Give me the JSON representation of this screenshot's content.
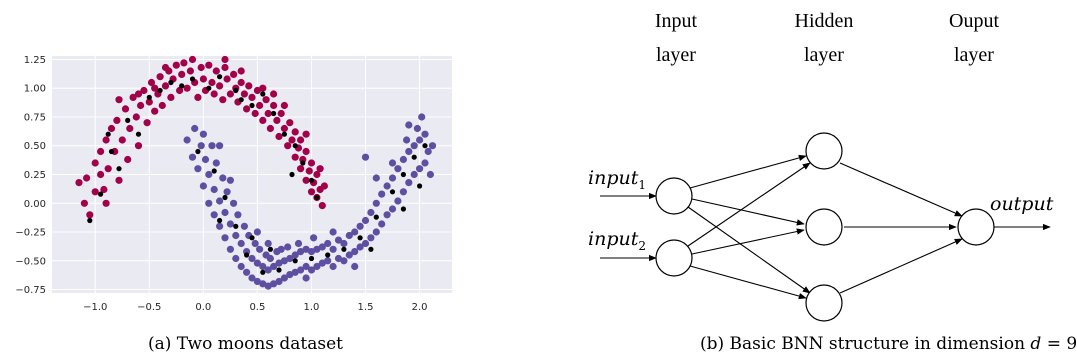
{
  "captions": {
    "a": "(a) Two moons dataset",
    "b_prefix": "(b) Basic BNN structure in dimension ",
    "b_var": "d",
    "b_eq": " = 9"
  },
  "network": {
    "layer_titles": [
      {
        "line1": "Input",
        "line2": "layer"
      },
      {
        "line1": "Hidden",
        "line2": "layer"
      },
      {
        "line1": "Ouput",
        "line2": "layer"
      }
    ],
    "inputs": [
      {
        "base": "input",
        "sub": "1"
      },
      {
        "base": "input",
        "sub": "2"
      }
    ],
    "output_label": "output"
  },
  "chart_data": {
    "type": "scatter",
    "title": "",
    "xlabel": "",
    "ylabel": "",
    "xlim": [
      -1.4,
      2.3
    ],
    "ylim": [
      -0.78,
      1.28
    ],
    "xticks": [
      -1.0,
      -0.5,
      0.0,
      0.5,
      1.0,
      1.5,
      2.0
    ],
    "xtick_labels": [
      "−1.0",
      "−0.5",
      "0.0",
      "0.5",
      "1.0",
      "1.5",
      "2.0"
    ],
    "yticks": [
      -0.75,
      -0.5,
      -0.25,
      0.0,
      0.25,
      0.5,
      0.75,
      1.0,
      1.25
    ],
    "ytick_labels": [
      "−0.75",
      "−0.50",
      "−0.25",
      "0.00",
      "0.25",
      "0.50",
      "0.75",
      "1.00",
      "1.25"
    ],
    "grid": true,
    "background": "#eaeaf2",
    "series": [
      {
        "color": "#a3004a",
        "points": [
          [
            -1.15,
            0.18
          ],
          [
            -1.1,
            0.0
          ],
          [
            -1.05,
            -0.1
          ],
          [
            -1.0,
            0.35
          ],
          [
            -1.0,
            0.1
          ],
          [
            -0.95,
            0.45
          ],
          [
            -0.95,
            0.25
          ],
          [
            -0.9,
            0.55
          ],
          [
            -0.9,
            0.0
          ],
          [
            -0.88,
            0.3
          ],
          [
            -0.85,
            0.65
          ],
          [
            -0.82,
            0.45
          ],
          [
            -0.8,
            0.72
          ],
          [
            -0.78,
            0.2
          ],
          [
            -0.75,
            0.55
          ],
          [
            -0.72,
            0.82
          ],
          [
            -0.7,
            0.38
          ],
          [
            -0.68,
            0.65
          ],
          [
            -0.65,
            0.92
          ],
          [
            -0.62,
            0.75
          ],
          [
            -0.6,
            0.5
          ],
          [
            -0.58,
            0.85
          ],
          [
            -0.55,
            0.98
          ],
          [
            -0.52,
            0.7
          ],
          [
            -0.5,
            0.88
          ],
          [
            -0.48,
            1.05
          ],
          [
            -0.45,
            0.8
          ],
          [
            -0.42,
            0.95
          ],
          [
            -0.4,
            1.1
          ],
          [
            -0.38,
            0.85
          ],
          [
            -0.35,
            1.02
          ],
          [
            -0.32,
            1.15
          ],
          [
            -0.3,
            0.92
          ],
          [
            -0.28,
            1.08
          ],
          [
            -0.25,
            1.2
          ],
          [
            -0.22,
            0.98
          ],
          [
            -0.2,
            1.12
          ],
          [
            -0.18,
            1.22
          ],
          [
            -0.15,
            1.0
          ],
          [
            -0.12,
            1.15
          ],
          [
            -0.1,
            1.25
          ],
          [
            -0.08,
            1.05
          ],
          [
            -0.05,
            0.92
          ],
          [
            -0.02,
            1.18
          ],
          [
            0.0,
            1.08
          ],
          [
            0.02,
            0.98
          ],
          [
            0.05,
            1.2
          ],
          [
            0.08,
            1.05
          ],
          [
            0.1,
            0.95
          ],
          [
            0.12,
            1.15
          ],
          [
            0.15,
            1.02
          ],
          [
            0.18,
            0.9
          ],
          [
            0.2,
            1.18
          ],
          [
            0.22,
            1.08
          ],
          [
            0.25,
            0.95
          ],
          [
            0.28,
            1.12
          ],
          [
            0.3,
            1.0
          ],
          [
            0.32,
            0.88
          ],
          [
            0.35,
            1.05
          ],
          [
            0.38,
            0.95
          ],
          [
            0.4,
            0.82
          ],
          [
            0.42,
            1.02
          ],
          [
            0.45,
            0.92
          ],
          [
            0.48,
            0.78
          ],
          [
            0.5,
            0.98
          ],
          [
            0.52,
            0.85
          ],
          [
            0.55,
            0.72
          ],
          [
            0.58,
            0.9
          ],
          [
            0.6,
            0.78
          ],
          [
            0.62,
            0.65
          ],
          [
            0.65,
            0.85
          ],
          [
            0.68,
            0.72
          ],
          [
            0.7,
            0.58
          ],
          [
            0.72,
            0.78
          ],
          [
            0.75,
            0.65
          ],
          [
            0.78,
            0.5
          ],
          [
            0.8,
            0.7
          ],
          [
            0.82,
            0.55
          ],
          [
            0.85,
            0.4
          ],
          [
            0.85,
            0.62
          ],
          [
            0.88,
            0.48
          ],
          [
            0.9,
            0.3
          ],
          [
            0.9,
            0.55
          ],
          [
            0.92,
            0.38
          ],
          [
            0.95,
            0.2
          ],
          [
            0.95,
            0.45
          ],
          [
            0.98,
            0.28
          ],
          [
            1.0,
            0.1
          ],
          [
            1.0,
            0.35
          ],
          [
            1.02,
            0.18
          ],
          [
            1.05,
            0.05
          ],
          [
            1.05,
            0.25
          ],
          [
            1.08,
            0.12
          ],
          [
            1.1,
            -0.02
          ],
          [
            1.12,
            0.15
          ],
          [
            -1.08,
            0.22
          ],
          [
            -0.92,
            0.12
          ],
          [
            -0.6,
            0.95
          ],
          [
            -0.35,
            1.18
          ],
          [
            0.2,
            1.25
          ],
          [
            0.55,
            1.0
          ],
          [
            0.75,
            0.85
          ],
          [
            0.95,
            0.6
          ],
          [
            1.08,
            0.3
          ],
          [
            -0.78,
            0.9
          ],
          [
            -0.45,
            1.0
          ],
          [
            0.35,
            1.15
          ],
          [
            0.65,
            0.95
          ]
        ]
      },
      {
        "color": "#5e4fa2",
        "points": [
          [
            -0.15,
            0.55
          ],
          [
            -0.1,
            0.4
          ],
          [
            -0.08,
            0.65
          ],
          [
            -0.05,
            0.3
          ],
          [
            -0.02,
            0.5
          ],
          [
            0.0,
            0.15
          ],
          [
            0.02,
            0.38
          ],
          [
            0.05,
            0.0
          ],
          [
            0.05,
            0.25
          ],
          [
            0.08,
            0.5
          ],
          [
            0.1,
            -0.1
          ],
          [
            0.1,
            0.12
          ],
          [
            0.12,
            0.35
          ],
          [
            0.15,
            -0.2
          ],
          [
            0.15,
            0.02
          ],
          [
            0.18,
            0.22
          ],
          [
            0.2,
            -0.3
          ],
          [
            0.2,
            -0.08
          ],
          [
            0.22,
            0.1
          ],
          [
            0.25,
            -0.4
          ],
          [
            0.25,
            -0.18
          ],
          [
            0.28,
            0.0
          ],
          [
            0.3,
            -0.48
          ],
          [
            0.3,
            -0.28
          ],
          [
            0.32,
            -0.1
          ],
          [
            0.35,
            -0.55
          ],
          [
            0.35,
            -0.35
          ],
          [
            0.38,
            -0.2
          ],
          [
            0.4,
            -0.6
          ],
          [
            0.4,
            -0.42
          ],
          [
            0.42,
            -0.28
          ],
          [
            0.45,
            -0.65
          ],
          [
            0.45,
            -0.48
          ],
          [
            0.48,
            -0.35
          ],
          [
            0.5,
            -0.68
          ],
          [
            0.5,
            -0.52
          ],
          [
            0.52,
            -0.4
          ],
          [
            0.55,
            -0.7
          ],
          [
            0.55,
            -0.55
          ],
          [
            0.58,
            -0.45
          ],
          [
            0.6,
            -0.72
          ],
          [
            0.6,
            -0.58
          ],
          [
            0.62,
            -0.48
          ],
          [
            0.65,
            -0.7
          ],
          [
            0.65,
            -0.55
          ],
          [
            0.68,
            -0.42
          ],
          [
            0.7,
            -0.68
          ],
          [
            0.7,
            -0.52
          ],
          [
            0.72,
            -0.4
          ],
          [
            0.75,
            -0.65
          ],
          [
            0.75,
            -0.5
          ],
          [
            0.78,
            -0.38
          ],
          [
            0.8,
            -0.62
          ],
          [
            0.8,
            -0.48
          ],
          [
            0.85,
            -0.6
          ],
          [
            0.85,
            -0.45
          ],
          [
            0.88,
            -0.35
          ],
          [
            0.9,
            -0.58
          ],
          [
            0.9,
            -0.42
          ],
          [
            0.95,
            -0.55
          ],
          [
            0.95,
            -0.4
          ],
          [
            1.0,
            -0.58
          ],
          [
            1.0,
            -0.42
          ],
          [
            1.02,
            -0.3
          ],
          [
            1.05,
            -0.55
          ],
          [
            1.05,
            -0.4
          ],
          [
            1.1,
            -0.52
          ],
          [
            1.1,
            -0.38
          ],
          [
            1.15,
            -0.5
          ],
          [
            1.15,
            -0.35
          ],
          [
            1.2,
            -0.55
          ],
          [
            1.2,
            -0.4
          ],
          [
            1.25,
            -0.48
          ],
          [
            1.25,
            -0.32
          ],
          [
            1.3,
            -0.5
          ],
          [
            1.3,
            -0.35
          ],
          [
            1.35,
            -0.45
          ],
          [
            1.35,
            -0.28
          ],
          [
            1.4,
            -0.42
          ],
          [
            1.4,
            -0.25
          ],
          [
            1.45,
            -0.38
          ],
          [
            1.45,
            -0.2
          ],
          [
            1.5,
            -0.35
          ],
          [
            1.5,
            -0.15
          ],
          [
            1.55,
            -0.3
          ],
          [
            1.55,
            -0.08
          ],
          [
            1.6,
            -0.25
          ],
          [
            1.6,
            0.0
          ],
          [
            1.65,
            -0.18
          ],
          [
            1.65,
            0.08
          ],
          [
            1.7,
            -0.1
          ],
          [
            1.7,
            0.15
          ],
          [
            1.75,
            -0.05
          ],
          [
            1.75,
            0.22
          ],
          [
            1.8,
            0.02
          ],
          [
            1.8,
            0.3
          ],
          [
            1.85,
            0.1
          ],
          [
            1.85,
            0.38
          ],
          [
            1.88,
            0.55
          ],
          [
            1.9,
            0.18
          ],
          [
            1.9,
            0.45
          ],
          [
            1.95,
            0.25
          ],
          [
            1.95,
            0.5
          ],
          [
            1.98,
            0.65
          ],
          [
            2.0,
            0.3
          ],
          [
            2.0,
            0.55
          ],
          [
            2.02,
            0.75
          ],
          [
            2.05,
            0.35
          ],
          [
            2.05,
            0.6
          ],
          [
            2.08,
            0.45
          ],
          [
            2.1,
            0.25
          ],
          [
            2.12,
            0.5
          ],
          [
            1.5,
            0.4
          ],
          [
            1.6,
            0.22
          ],
          [
            0.0,
            0.6
          ],
          [
            0.25,
            0.2
          ],
          [
            0.5,
            -0.25
          ],
          [
            0.95,
            -0.65
          ],
          [
            1.4,
            -0.55
          ],
          [
            1.75,
            0.35
          ],
          [
            0.15,
            0.5
          ],
          [
            0.6,
            -0.35
          ],
          [
            1.2,
            -0.25
          ],
          [
            1.9,
            0.68
          ]
        ]
      },
      {
        "color": "#000000",
        "points": [
          [
            -0.95,
            0.08
          ],
          [
            -0.85,
            0.45
          ],
          [
            -0.78,
            0.3
          ],
          [
            -1.05,
            -0.15
          ],
          [
            -0.7,
            0.72
          ],
          [
            -0.6,
            0.6
          ],
          [
            -0.5,
            0.92
          ],
          [
            -0.4,
            0.98
          ],
          [
            -0.3,
            1.05
          ],
          [
            -0.2,
            1.02
          ],
          [
            -0.1,
            1.08
          ],
          [
            0.05,
            1.0
          ],
          [
            0.15,
            1.1
          ],
          [
            0.3,
            0.98
          ],
          [
            0.45,
            0.85
          ],
          [
            0.55,
            0.95
          ],
          [
            0.65,
            0.78
          ],
          [
            0.75,
            0.6
          ],
          [
            0.85,
            0.5
          ],
          [
            0.92,
            0.35
          ],
          [
            1.0,
            0.2
          ],
          [
            0.82,
            0.25
          ],
          [
            -0.05,
            0.45
          ],
          [
            0.1,
            0.28
          ],
          [
            0.2,
            0.05
          ],
          [
            0.3,
            -0.2
          ],
          [
            0.4,
            -0.45
          ],
          [
            0.55,
            -0.6
          ],
          [
            0.7,
            -0.58
          ],
          [
            0.85,
            -0.5
          ],
          [
            1.0,
            -0.48
          ],
          [
            1.15,
            -0.45
          ],
          [
            1.3,
            -0.4
          ],
          [
            1.45,
            -0.3
          ],
          [
            1.6,
            -0.12
          ],
          [
            1.75,
            0.1
          ],
          [
            1.85,
            0.25
          ],
          [
            1.95,
            0.4
          ],
          [
            2.0,
            0.15
          ],
          [
            1.85,
            -0.05
          ],
          [
            1.55,
            -0.4
          ],
          [
            0.45,
            -0.3
          ],
          [
            0.62,
            -0.4
          ],
          [
            0.15,
            -0.15
          ],
          [
            -0.88,
            0.6
          ],
          [
            0.35,
            0.9
          ],
          [
            1.05,
            0.05
          ],
          [
            2.05,
            0.5
          ]
        ]
      }
    ]
  }
}
